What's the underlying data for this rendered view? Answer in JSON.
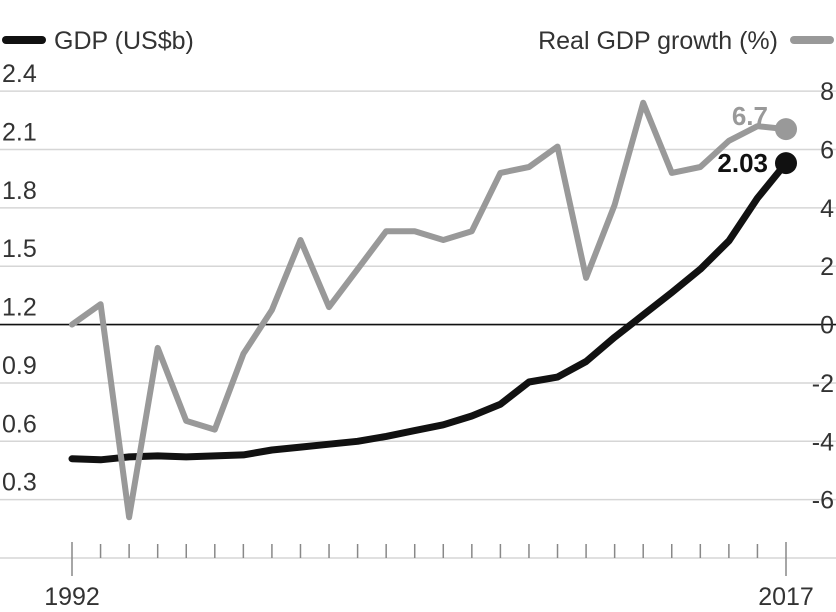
{
  "chart_data": {
    "type": "line",
    "x": [
      1992,
      1993,
      1994,
      1995,
      1996,
      1997,
      1998,
      1999,
      2000,
      2001,
      2002,
      2003,
      2004,
      2005,
      2006,
      2007,
      2008,
      2009,
      2010,
      2011,
      2012,
      2013,
      2014,
      2015,
      2016,
      2017
    ],
    "xticks": [
      "1992",
      "2017"
    ],
    "series": [
      {
        "name": "GDP (US$b)",
        "axis": "left",
        "color": "#111111",
        "values": [
          0.51,
          0.505,
          0.52,
          0.525,
          0.52,
          0.525,
          0.53,
          0.555,
          0.57,
          0.585,
          0.6,
          0.625,
          0.655,
          0.685,
          0.73,
          0.79,
          0.905,
          0.93,
          1.01,
          1.135,
          1.25,
          1.365,
          1.485,
          1.63,
          1.85,
          2.03
        ],
        "end_label": "2.03"
      },
      {
        "name": "Real GDP growth (%)",
        "axis": "right",
        "color": "#999999",
        "values": [
          0.0,
          0.7,
          -6.6,
          -0.8,
          -3.3,
          -3.6,
          -1.0,
          0.5,
          2.9,
          0.6,
          1.9,
          3.2,
          3.2,
          2.9,
          3.2,
          5.2,
          5.4,
          6.1,
          1.6,
          4.1,
          7.6,
          5.2,
          5.4,
          6.3,
          6.8,
          6.7
        ],
        "end_label": "6.7"
      }
    ],
    "y_left": {
      "ticks": [
        "0.3",
        "0.6",
        "0.9",
        "1.2",
        "1.5",
        "1.8",
        "2.1",
        "2.4"
      ],
      "min": 0.0,
      "max": 2.55
    },
    "y_right": {
      "ticks": [
        "-6",
        "-4",
        "-2",
        "0",
        "2",
        "4",
        "6",
        "8"
      ],
      "min": -8.0,
      "max": 9.0
    },
    "legend": {
      "left": "GDP (US$b)",
      "right": "Real GDP growth (%)",
      "placement": "top"
    },
    "grid": true
  }
}
